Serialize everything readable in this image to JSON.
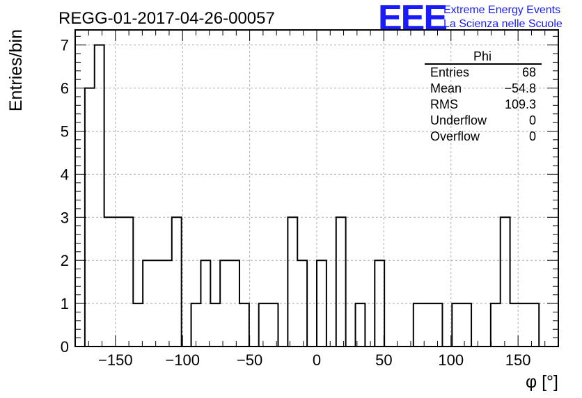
{
  "chart_data": {
    "type": "histogram",
    "title": "REGG-01-2017-04-26-00057",
    "xlabel": "φ [°]",
    "ylabel": "Entries/bin",
    "xlim": [
      -180,
      180
    ],
    "ylim": [
      0,
      7.35
    ],
    "bin_width": 7.2,
    "x_ticks": [
      -150,
      -100,
      -50,
      0,
      50,
      100,
      150
    ],
    "x_tick_labels": [
      "−150",
      "−100",
      "−50",
      "0",
      "50",
      "100",
      "150"
    ],
    "y_ticks": [
      0,
      1,
      2,
      3,
      4,
      5,
      6,
      7
    ],
    "y_tick_labels": [
      "0",
      "1",
      "2",
      "3",
      "4",
      "5",
      "6",
      "7"
    ],
    "grid": true,
    "values": [
      0,
      6,
      7,
      3,
      3,
      3,
      1,
      2,
      2,
      2,
      3,
      0,
      1,
      2,
      1,
      2,
      2,
      1,
      0,
      1,
      1,
      0,
      3,
      2,
      0,
      2,
      0,
      3,
      0,
      1,
      0,
      2,
      0,
      0,
      0,
      1,
      1,
      1,
      0,
      1,
      1,
      0,
      0,
      1,
      3,
      1,
      1,
      1,
      0,
      0
    ],
    "stats": {
      "name": "Phi",
      "position": "top-right",
      "rows": [
        {
          "label": "Entries",
          "value": "68"
        },
        {
          "label": "Mean",
          "value": "−54.8"
        },
        {
          "label": "RMS",
          "value": "109.3"
        },
        {
          "label": "Underflow",
          "value": "0"
        },
        {
          "label": "Overflow",
          "value": "0"
        }
      ]
    }
  },
  "logo": {
    "mark": "EEE",
    "line1": "Extreme Energy Events",
    "line2": "La Scienza nelle Scuole",
    "color": "#1a1aff"
  }
}
